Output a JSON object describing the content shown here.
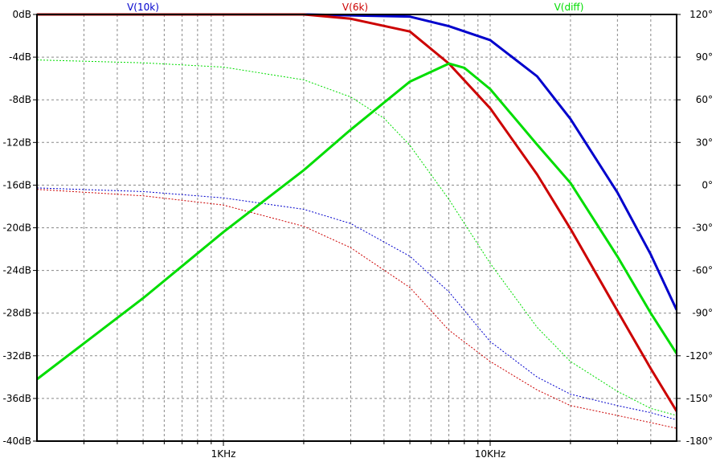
{
  "chart_data": {
    "type": "line",
    "x_scale": "log",
    "xlim": [
      200,
      50000
    ],
    "ylim_left": [
      -40,
      0
    ],
    "ylim_right": [
      -180,
      120
    ],
    "grid": true,
    "legend_position": "top",
    "x_tick_labels": [
      {
        "x": 1000,
        "label": "1KHz"
      },
      {
        "x": 10000,
        "label": "10KHz"
      }
    ],
    "x_minor_ticks": [
      300,
      400,
      500,
      600,
      700,
      800,
      900,
      2000,
      3000,
      4000,
      5000,
      6000,
      7000,
      8000,
      9000,
      20000,
      30000,
      40000
    ],
    "y_left_ticks": [
      {
        "v": 0,
        "label": "0dB"
      },
      {
        "v": -4,
        "label": "-4dB"
      },
      {
        "v": -8,
        "label": "-8dB"
      },
      {
        "v": -12,
        "label": "-12dB"
      },
      {
        "v": -16,
        "label": "-16dB"
      },
      {
        "v": -20,
        "label": "-20dB"
      },
      {
        "v": -24,
        "label": "-24dB"
      },
      {
        "v": -28,
        "label": "-28dB"
      },
      {
        "v": -32,
        "label": "-32dB"
      },
      {
        "v": -36,
        "label": "-36dB"
      },
      {
        "v": -40,
        "label": "-40dB"
      }
    ],
    "y_right_ticks": [
      {
        "v": 120,
        "label": "120°"
      },
      {
        "v": 90,
        "label": "90°"
      },
      {
        "v": 60,
        "label": "60°"
      },
      {
        "v": 30,
        "label": "30°"
      },
      {
        "v": 0,
        "label": "0°"
      },
      {
        "v": -30,
        "label": "-30°"
      },
      {
        "v": -60,
        "label": "-60°"
      },
      {
        "v": -90,
        "label": "-90°"
      },
      {
        "v": -120,
        "label": "-120°"
      },
      {
        "v": -150,
        "label": "-150°"
      },
      {
        "v": -180,
        "label": "-180°"
      }
    ],
    "series": [
      {
        "name": "V(10k)",
        "color": "#0000cc",
        "magnitude_db": [
          [
            200,
            0
          ],
          [
            1000,
            0
          ],
          [
            2000,
            0
          ],
          [
            5000,
            -0.2
          ],
          [
            7000,
            -1.1
          ],
          [
            10000,
            -2.4
          ],
          [
            15000,
            -5.8
          ],
          [
            20000,
            -9.8
          ],
          [
            30000,
            -16.7
          ],
          [
            40000,
            -22.5
          ],
          [
            50000,
            -27.7
          ]
        ],
        "phase_deg": [
          [
            200,
            -2
          ],
          [
            500,
            -4.5
          ],
          [
            1000,
            -9
          ],
          [
            2000,
            -17
          ],
          [
            3000,
            -27
          ],
          [
            5000,
            -50
          ],
          [
            7000,
            -75
          ],
          [
            10000,
            -110
          ],
          [
            15000,
            -135
          ],
          [
            20000,
            -147
          ],
          [
            30000,
            -155
          ],
          [
            40000,
            -160
          ],
          [
            50000,
            -165
          ]
        ]
      },
      {
        "name": "V(6k)",
        "color": "#cc0000",
        "magnitude_db": [
          [
            200,
            0
          ],
          [
            1000,
            0
          ],
          [
            2000,
            0
          ],
          [
            3000,
            -0.4
          ],
          [
            5000,
            -1.6
          ],
          [
            7000,
            -4.6
          ],
          [
            10000,
            -8.8
          ],
          [
            15000,
            -15.0
          ],
          [
            20000,
            -20.1
          ],
          [
            30000,
            -27.8
          ],
          [
            40000,
            -33.2
          ],
          [
            50000,
            -37.2
          ]
        ],
        "phase_deg": [
          [
            200,
            -3
          ],
          [
            500,
            -7.5
          ],
          [
            1000,
            -14
          ],
          [
            2000,
            -29
          ],
          [
            3000,
            -44
          ],
          [
            5000,
            -72
          ],
          [
            7000,
            -102
          ],
          [
            10000,
            -124
          ],
          [
            15000,
            -144
          ],
          [
            20000,
            -155
          ],
          [
            30000,
            -162
          ],
          [
            40000,
            -167
          ],
          [
            50000,
            -171
          ]
        ]
      },
      {
        "name": "V(diff)",
        "color": "#00dd00",
        "magnitude_db": [
          [
            200,
            -34.2
          ],
          [
            500,
            -26.6
          ],
          [
            1000,
            -20.4
          ],
          [
            2000,
            -14.6
          ],
          [
            3000,
            -10.8
          ],
          [
            5000,
            -6.3
          ],
          [
            7000,
            -4.6
          ],
          [
            8000,
            -5.0
          ],
          [
            10000,
            -7.0
          ],
          [
            15000,
            -12.2
          ],
          [
            20000,
            -15.8
          ],
          [
            30000,
            -22.7
          ],
          [
            40000,
            -28.0
          ],
          [
            50000,
            -31.8
          ]
        ],
        "phase_deg": [
          [
            200,
            88
          ],
          [
            500,
            86
          ],
          [
            1000,
            83
          ],
          [
            2000,
            74
          ],
          [
            3000,
            62
          ],
          [
            4000,
            47
          ],
          [
            5000,
            28
          ],
          [
            7000,
            -10
          ],
          [
            10000,
            -55
          ],
          [
            15000,
            -100
          ],
          [
            20000,
            -124
          ],
          [
            30000,
            -145
          ],
          [
            40000,
            -157
          ],
          [
            50000,
            -162
          ]
        ]
      }
    ]
  }
}
